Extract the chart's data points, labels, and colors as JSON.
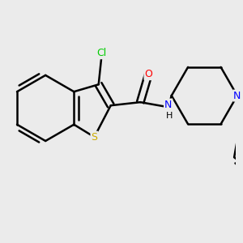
{
  "background_color": "#ebebeb",
  "bond_color": "#000000",
  "bond_width": 1.8,
  "atom_colors": {
    "Cl": "#00cc00",
    "S": "#ccaa00",
    "O": "#ff0000",
    "N": "#0000ff",
    "H": "#000000",
    "C": "#000000"
  },
  "font_size": 9,
  "fig_size": [
    3.0,
    3.0
  ],
  "dpi": 100
}
